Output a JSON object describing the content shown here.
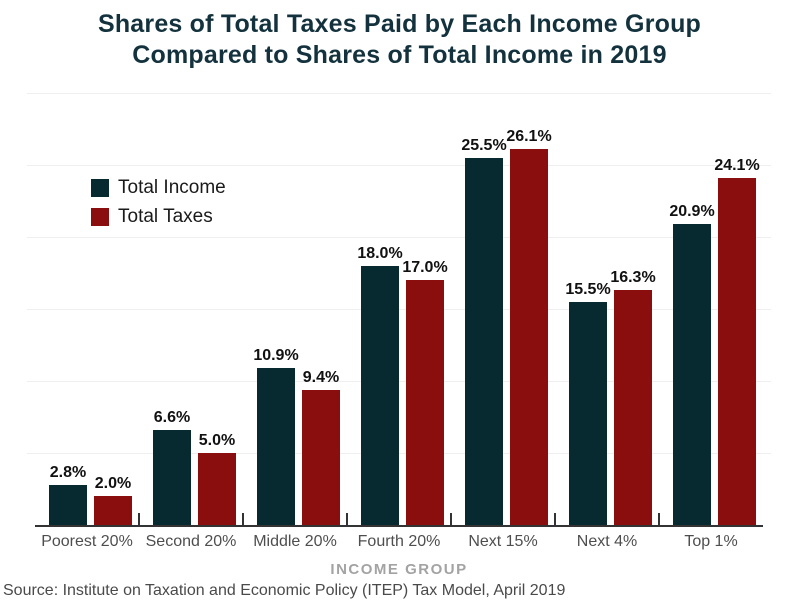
{
  "title": {
    "line1": "Shares of Total Taxes Paid by Each Income Group",
    "line2": "Compared to Shares of Total Income in 2019"
  },
  "legend": {
    "income_label": "Total Income",
    "taxes_label": "Total Taxes"
  },
  "source": "Source: Institute on Taxation and Economic Policy (ITEP) Tax Model, April 2019",
  "colors": {
    "income_bar": "#072a31",
    "taxes_bar": "#8b0e0e",
    "title_text": "#13323d",
    "gridline": "#efefef",
    "axis_line": "#333333",
    "value_label": "#111111",
    "tick_label": "#4e4e4e",
    "axis_title": "#a3a3a3"
  },
  "chart_data": {
    "type": "bar",
    "categories": [
      "Poorest 20%",
      "Second 20%",
      "Middle 20%",
      "Fourth 20%",
      "Next 15%",
      "Next 4%",
      "Top 1%"
    ],
    "series": [
      {
        "name": "Total Income",
        "values": [
          2.8,
          6.6,
          10.9,
          18.0,
          25.5,
          15.5,
          20.9
        ]
      },
      {
        "name": "Total Taxes",
        "values": [
          2.0,
          5.0,
          9.4,
          17.0,
          26.1,
          16.3,
          24.1
        ]
      }
    ],
    "title": "Shares of Total Taxes Paid by Each Income Group Compared to Shares of Total Income in 2019",
    "xlabel": "INCOME GROUP",
    "ylabel": "",
    "ylim": [
      0,
      30
    ],
    "grid": true,
    "gridline_step": 5,
    "legend_position": "upper-left",
    "value_label_format": "{value}%"
  }
}
